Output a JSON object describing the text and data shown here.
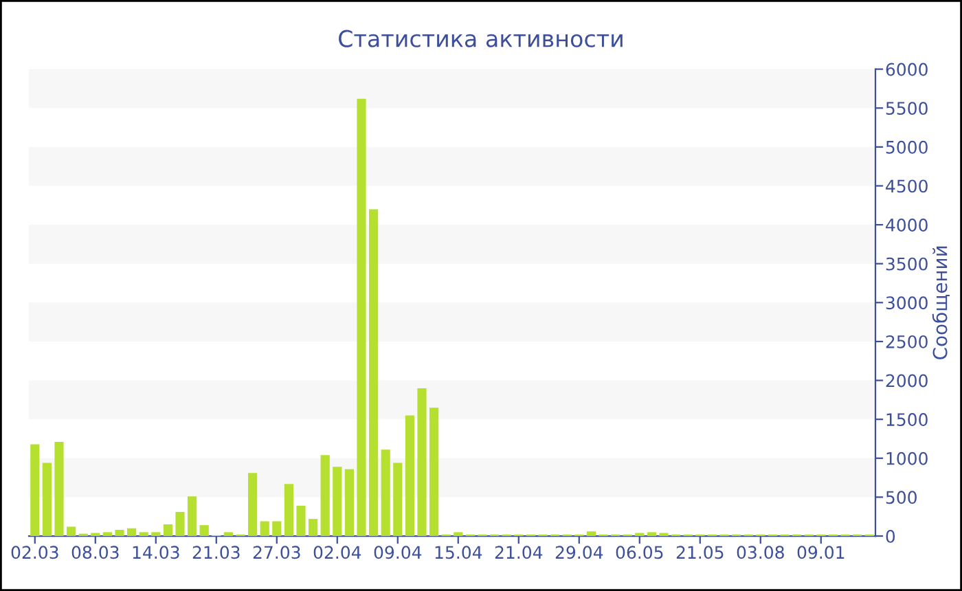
{
  "chart_data": {
    "type": "bar",
    "title": "Статистика активности",
    "ylabel": "Сообщений",
    "categories": [
      "02.03",
      null,
      null,
      null,
      null,
      "08.03",
      null,
      null,
      null,
      null,
      "14.03",
      null,
      null,
      null,
      null,
      "21.03",
      null,
      null,
      null,
      null,
      "27.03",
      null,
      null,
      null,
      null,
      "02.04",
      null,
      null,
      null,
      null,
      "09.04",
      null,
      null,
      null,
      null,
      "15.04",
      null,
      null,
      null,
      null,
      "21.04",
      null,
      null,
      null,
      null,
      "29.04",
      null,
      null,
      null,
      null,
      "06.05",
      null,
      null,
      null,
      null,
      "21.05",
      null,
      null,
      null,
      null,
      "03.08",
      null,
      null,
      null,
      null,
      "09.01",
      null,
      null,
      null,
      null
    ],
    "values": [
      1180,
      940,
      1210,
      120,
      30,
      40,
      50,
      80,
      100,
      50,
      50,
      150,
      310,
      510,
      140,
      10,
      50,
      20,
      810,
      190,
      190,
      670,
      390,
      220,
      1040,
      890,
      860,
      5620,
      4200,
      1110,
      940,
      1550,
      1900,
      1650,
      20,
      50,
      20,
      20,
      20,
      20,
      20,
      20,
      20,
      20,
      20,
      20,
      60,
      20,
      20,
      20,
      40,
      50,
      40,
      20,
      20,
      20,
      20,
      20,
      20,
      20,
      20,
      20,
      20,
      20,
      20,
      20,
      20,
      20,
      20,
      20
    ],
    "color": "#b5e02f",
    "ylim": [
      0,
      6000
    ],
    "yticks": [
      0,
      500,
      1000,
      1500,
      2000,
      2500,
      3000,
      3500,
      4000,
      4500,
      5000,
      5500,
      6000
    ],
    "bands": [
      {
        "axis": "y",
        "from": 500,
        "to": 1000,
        "color": "#f7f7f7"
      },
      {
        "axis": "y",
        "from": 1500,
        "to": 2000,
        "color": "#f7f7f7"
      },
      {
        "axis": "y",
        "from": 2500,
        "to": 3000,
        "color": "#f7f7f7"
      },
      {
        "axis": "y",
        "from": 3500,
        "to": 4000,
        "color": "#f7f7f7"
      },
      {
        "axis": "y",
        "from": 4500,
        "to": 5000,
        "color": "#f7f7f7"
      },
      {
        "axis": "y",
        "from": 5500,
        "to": 6000,
        "color": "#f7f7f7"
      }
    ],
    "grid": false,
    "legend": false
  }
}
